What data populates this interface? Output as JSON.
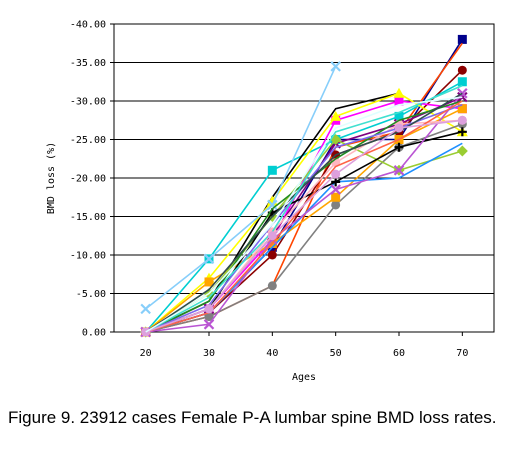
{
  "chart_data": {
    "type": "line",
    "title": "",
    "xlabel": "Ages",
    "ylabel": "BMD loss (%)",
    "categories": [
      "20",
      "30",
      "40",
      "50",
      "60",
      "70"
    ],
    "y_ticks": [
      "0.00",
      "-5.00",
      "-10.00",
      "-15.00",
      "-20.00",
      "-25.00",
      "-30.00",
      "-35.00",
      "-40.00"
    ],
    "ylim": [
      0,
      -40
    ],
    "y_inverted": true,
    "grid": "horizontal",
    "legend": "none",
    "series": [
      {
        "color": "#00008b",
        "marker": "square",
        "values": [
          0,
          -2.5,
          -11,
          -25,
          -25,
          -38
        ]
      },
      {
        "color": "#ff4500",
        "marker": "none",
        "values": [
          0,
          -2,
          -6,
          -24,
          -26,
          -37.5
        ]
      },
      {
        "color": "#8b0000",
        "marker": "circle",
        "values": [
          0,
          -2.5,
          -10,
          -23,
          -26,
          -34
        ]
      },
      {
        "color": "#00ced1",
        "marker": "square",
        "values": [
          0,
          -9.5,
          -21,
          -25,
          -28,
          -32.5
        ]
      },
      {
        "color": "#000000",
        "marker": "none",
        "values": [
          0,
          -4,
          -17.5,
          -29,
          -31,
          null
        ]
      },
      {
        "color": "#ff00ff",
        "marker": "square",
        "values": [
          0,
          -3,
          -12,
          -27.5,
          -30,
          -29
        ]
      },
      {
        "color": "#ffff00",
        "marker": "triangle",
        "values": [
          0,
          -7,
          -17,
          -28,
          -31,
          -26
        ]
      },
      {
        "color": "#800080",
        "marker": "x",
        "values": [
          0,
          -3,
          -12.5,
          -24.5,
          -27,
          -30.5
        ]
      },
      {
        "color": "#87cefa",
        "marker": "x",
        "values": [
          -3,
          -9.5,
          -16.5,
          -34.5,
          null,
          null
        ]
      },
      {
        "color": "#808080",
        "marker": "circle",
        "values": [
          0,
          -2,
          -6,
          -16.5,
          -24,
          -27
        ]
      },
      {
        "color": "#ffa500",
        "marker": "square",
        "values": [
          0,
          -6.5,
          -11.5,
          -17.5,
          -25,
          -29
        ]
      },
      {
        "color": "#9acd32",
        "marker": "diamond",
        "values": [
          0,
          -5,
          -15,
          -25,
          -21,
          -23.5
        ]
      },
      {
        "color": "#1e90ff",
        "marker": "none",
        "values": [
          0,
          -2.5,
          -11,
          -19.5,
          -20,
          -24.5
        ]
      },
      {
        "color": "#000000",
        "marker": "plus",
        "values": [
          0,
          -3,
          -15.5,
          -19.5,
          -24,
          -26
        ]
      },
      {
        "color": "#ba55d3",
        "marker": "x",
        "values": [
          0,
          -1,
          -12,
          -18.5,
          -21,
          -31
        ]
      },
      {
        "color": "#ffb6c1",
        "marker": "circle",
        "values": [
          0,
          -3,
          -13,
          -22,
          -27,
          -27.5
        ]
      },
      {
        "color": "#228b22",
        "marker": "none",
        "values": [
          0,
          -4,
          -16,
          -22.5,
          -27.5,
          -30
        ]
      },
      {
        "color": "#7b68ee",
        "marker": "none",
        "values": [
          0,
          -3.5,
          -14,
          -24,
          -26.5,
          -29.5
        ]
      },
      {
        "color": "#ff6347",
        "marker": "none",
        "values": [
          0,
          -2.5,
          -11.5,
          -21.5,
          -25,
          -30
        ]
      },
      {
        "color": "#2f4f4f",
        "marker": "none",
        "values": [
          0,
          -5.5,
          -15,
          -23,
          -26,
          -31
        ]
      },
      {
        "color": "#40e0d0",
        "marker": "none",
        "values": [
          0,
          -4.5,
          -13,
          -26,
          -28.5,
          -32
        ]
      },
      {
        "color": "#dda0dd",
        "marker": "circle",
        "values": [
          0,
          -3,
          -12.5,
          -20.5,
          -26.5,
          -27.5
        ]
      },
      {
        "color": "#e0ffff",
        "marker": "none",
        "values": [
          0,
          -5,
          -14,
          -26.5,
          -29.5,
          -30.5
        ]
      }
    ]
  },
  "caption": "Figure 9. 23912 cases Female P-A lumbar spine BMD loss rates."
}
